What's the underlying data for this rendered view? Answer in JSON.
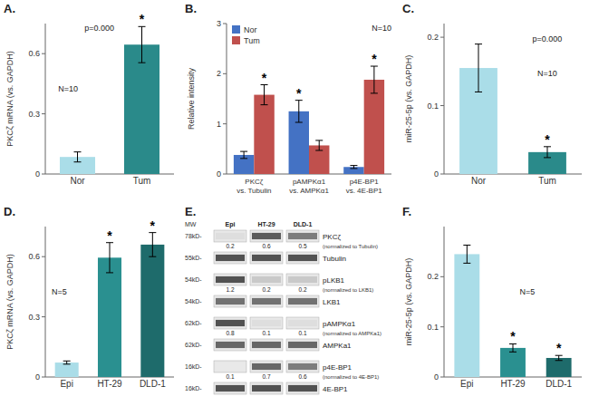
{
  "chart_data": [
    {
      "type": "bar",
      "title": "A.",
      "categories": [
        "Nor",
        "Tum"
      ],
      "values": [
        0.085,
        0.645
      ],
      "errors": [
        0.025,
        0.09
      ],
      "colors": [
        "#aadde8",
        "#2a8a8a"
      ],
      "ylabel": "PKCζ mRNA (vs. GAPDH)",
      "ylim": [
        0,
        0.75
      ],
      "yticks": [
        0,
        0.3,
        0.6
      ],
      "annotations": [
        "p=0.000",
        "N=10"
      ],
      "stars": [
        false,
        true
      ],
      "star": "*"
    },
    {
      "type": "bar",
      "title": "B.",
      "categories": [
        "PKCζ\nvs. Tubulin",
        "pAMPKα1\nvs. AMPKα1",
        "p4E-BP1\nvs. 4E-BP1"
      ],
      "series": [
        {
          "name": "Nor",
          "color": "#4472c4",
          "values": [
            0.38,
            1.25,
            0.14
          ],
          "errors": [
            0.07,
            0.22,
            0.03
          ],
          "stars": [
            false,
            true,
            false
          ]
        },
        {
          "name": "Tum",
          "color": "#c0504d",
          "values": [
            1.58,
            0.57,
            1.88
          ],
          "errors": [
            0.2,
            0.1,
            0.27
          ],
          "stars": [
            true,
            false,
            true
          ]
        }
      ],
      "ylabel": "Relative intensity",
      "ylim": [
        0,
        3
      ],
      "yticks": [
        0,
        1,
        2,
        3
      ],
      "legend": "upper left",
      "annotations": [
        "N=10"
      ],
      "star": "*"
    },
    {
      "type": "bar",
      "title": "C.",
      "categories": [
        "Nor",
        "Tum"
      ],
      "values": [
        0.155,
        0.032
      ],
      "errors": [
        0.035,
        0.008
      ],
      "colors": [
        "#aadde8",
        "#2a8a8a"
      ],
      "ylabel": "miR-25-5p (vs. GAPDH)",
      "ylim": [
        0,
        0.22
      ],
      "yticks": [
        0,
        0.1,
        0.2
      ],
      "annotations": [
        "p=0.000",
        "N=10"
      ],
      "stars": [
        false,
        true
      ],
      "star": "*"
    },
    {
      "type": "bar",
      "title": "D.",
      "categories": [
        "Epi",
        "HT-29",
        "DLD-1"
      ],
      "values": [
        0.072,
        0.595,
        0.66
      ],
      "errors": [
        0.008,
        0.075,
        0.06
      ],
      "colors": [
        "#aadde8",
        "#2a9090",
        "#1e6b6b"
      ],
      "ylabel": "PKCζ mRNA (vs. GAPDH)",
      "ylim": [
        0,
        0.75
      ],
      "yticks": [
        0,
        0.3,
        0.6
      ],
      "annotations": [
        "N=5"
      ],
      "stars": [
        false,
        true,
        true
      ],
      "star": "*"
    },
    {
      "type": "heatmap",
      "title": "E.",
      "ylabel": "MW",
      "categories": [
        "Epi",
        "HT-29",
        "DLD-1"
      ],
      "series": [
        {
          "name": "PKCζ",
          "mw": "78kD-",
          "values": [
            0.15,
            0.75,
            0.6
          ],
          "quant": [
            0.2,
            0.6,
            0.5
          ],
          "note": "(normalized to Tubulin)"
        },
        {
          "name": "Tubulin",
          "mw": "55kD-",
          "values": [
            0.8,
            0.8,
            0.8
          ]
        },
        {
          "name": "pLKB1",
          "mw": "54kD-",
          "values": [
            0.8,
            0.25,
            0.25
          ],
          "quant": [
            1.2,
            0.2,
            0.2
          ],
          "note": "(normalized to LKB1)"
        },
        {
          "name": "LKB1",
          "mw": "54kD-",
          "values": [
            0.65,
            0.65,
            0.65
          ]
        },
        {
          "name": "pAMPKα1",
          "mw": "62kD-",
          "values": [
            0.8,
            0.15,
            0.15
          ],
          "quant": [
            0.8,
            0.1,
            0.1
          ],
          "note": "(normalized to AMPKa1)"
        },
        {
          "name": "AMPKa1",
          "mw": "62kD-",
          "values": [
            0.7,
            0.7,
            0.7
          ]
        },
        {
          "name": "p4E-BP1",
          "mw": "16kD-",
          "values": [
            0.1,
            0.7,
            0.6
          ],
          "quant": [
            0.1,
            0.7,
            0.6
          ],
          "note": "(normalized to 4E-BP1)"
        },
        {
          "name": "4E-BP1",
          "mw": "16kD-",
          "values": [
            0.8,
            0.8,
            0.8
          ]
        }
      ]
    },
    {
      "type": "bar",
      "title": "F.",
      "categories": [
        "Epi",
        "HT-29",
        "DLD-1"
      ],
      "values": [
        0.245,
        0.058,
        0.038
      ],
      "errors": [
        0.018,
        0.008,
        0.005
      ],
      "colors": [
        "#aadde8",
        "#2a9090",
        "#1e6b6b"
      ],
      "ylabel": "miR-25-5p (vs. GAPDH)",
      "ylim": [
        0,
        0.3
      ],
      "yticks": [
        0,
        0.1,
        0.2
      ],
      "annotations": [
        "N=5"
      ],
      "stars": [
        false,
        true,
        true
      ],
      "star": "*"
    }
  ]
}
